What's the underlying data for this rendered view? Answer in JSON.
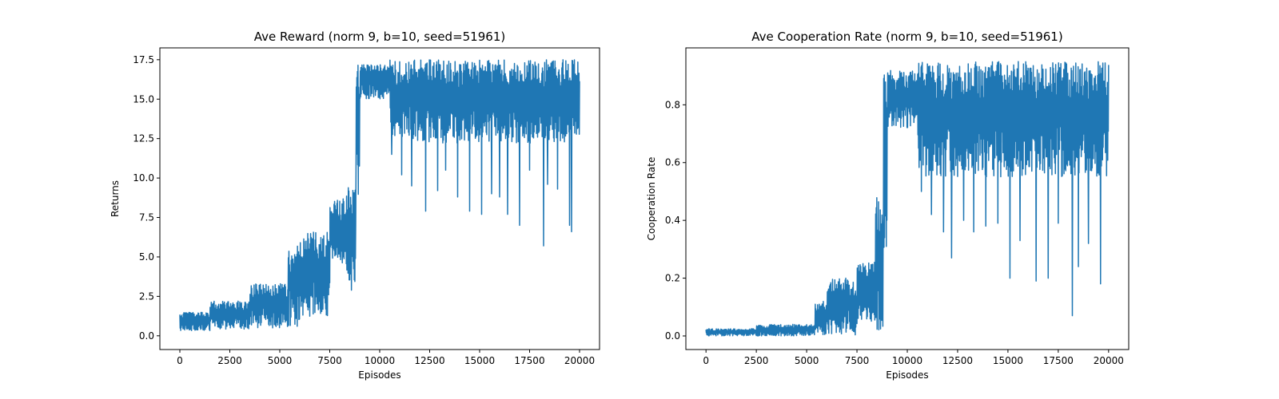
{
  "chart_data": [
    {
      "type": "line",
      "title": "Ave Reward (norm 9, b=10, seed=51961)",
      "xlabel": "Episodes",
      "ylabel": "Returns",
      "xlim": [
        -1000,
        21000
      ],
      "ylim": [
        -0.87,
        18.25
      ],
      "xticks": [
        0,
        2500,
        5000,
        7500,
        10000,
        12500,
        15000,
        17500,
        20000
      ],
      "yticks": [
        0.0,
        2.5,
        5.0,
        7.5,
        10.0,
        12.5,
        15.0,
        17.5
      ],
      "ytick_labels": [
        "0.0",
        "2.5",
        "5.0",
        "7.5",
        "10.0",
        "12.5",
        "15.0",
        "17.5"
      ],
      "color": "#1f77b4",
      "grid": false,
      "series": [
        {
          "x_start": 0,
          "x_end": 20000,
          "segments": [
            {
              "x": [
                0,
                1500
              ],
              "low": 0.3,
              "high": 1.5
            },
            {
              "x": [
                1500,
                3500
              ],
              "low": 0.4,
              "high": 2.2
            },
            {
              "x": [
                3500,
                5400
              ],
              "low": 0.5,
              "high": 3.3
            },
            {
              "x": [
                5400,
                6000
              ],
              "low": 0.6,
              "high": 5.8
            },
            {
              "x": [
                6000,
                7500
              ],
              "low": 1.2,
              "high": 6.6
            },
            {
              "x": [
                7500,
                8300
              ],
              "low": 4.5,
              "high": 8.7
            },
            {
              "x": [
                8300,
                8800
              ],
              "low": 2.6,
              "high": 9.4
            },
            {
              "x": [
                8800,
                9000
              ],
              "low": 8.0,
              "high": 17.2
            },
            {
              "x": [
                9000,
                10500
              ],
              "low": 15.0,
              "high": 17.2
            },
            {
              "x": [
                10500,
                20000
              ],
              "low": 12.2,
              "high": 17.5
            }
          ],
          "dips": [
            [
              10600,
              11.5
            ],
            [
              11100,
              10.2
            ],
            [
              11600,
              9.5
            ],
            [
              12300,
              7.9
            ],
            [
              12900,
              9.2
            ],
            [
              13300,
              10.5
            ],
            [
              13900,
              8.8
            ],
            [
              14500,
              7.9
            ],
            [
              15100,
              7.7
            ],
            [
              15600,
              9.0
            ],
            [
              16000,
              8.8
            ],
            [
              16400,
              7.7
            ],
            [
              17000,
              7.0
            ],
            [
              17500,
              10.5
            ],
            [
              18200,
              5.7
            ],
            [
              18400,
              9.6
            ],
            [
              18900,
              9.3
            ],
            [
              19500,
              7.0
            ],
            [
              19600,
              6.6
            ]
          ]
        }
      ]
    },
    {
      "type": "line",
      "title": "Ave Cooperation Rate (norm 9, b=10, seed=51961)",
      "xlabel": "Episodes",
      "ylabel": "Cooperation Rate",
      "xlim": [
        -1000,
        21000
      ],
      "ylim": [
        -0.047,
        0.997
      ],
      "xticks": [
        0,
        2500,
        5000,
        7500,
        10000,
        12500,
        15000,
        17500,
        20000
      ],
      "yticks": [
        0.0,
        0.2,
        0.4,
        0.6,
        0.8
      ],
      "ytick_labels": [
        "0.0",
        "0.2",
        "0.4",
        "0.6",
        "0.8"
      ],
      "color": "#1f77b4",
      "grid": false,
      "series": [
        {
          "x_start": 0,
          "x_end": 20000,
          "segments": [
            {
              "x": [
                0,
                2500
              ],
              "low": 0.0,
              "high": 0.025
            },
            {
              "x": [
                2500,
                5400
              ],
              "low": 0.0,
              "high": 0.04
            },
            {
              "x": [
                5400,
                6000
              ],
              "low": 0.0,
              "high": 0.12
            },
            {
              "x": [
                6000,
                7500
              ],
              "low": 0.0,
              "high": 0.2
            },
            {
              "x": [
                7500,
                8400
              ],
              "low": 0.05,
              "high": 0.26
            },
            {
              "x": [
                8400,
                8800
              ],
              "low": 0.02,
              "high": 0.48
            },
            {
              "x": [
                8800,
                9000
              ],
              "low": 0.3,
              "high": 0.91
            },
            {
              "x": [
                9000,
                10500
              ],
              "low": 0.72,
              "high": 0.92
            },
            {
              "x": [
                10500,
                20000
              ],
              "low": 0.55,
              "high": 0.95
            }
          ],
          "dips": [
            [
              10700,
              0.5
            ],
            [
              11200,
              0.42
            ],
            [
              11800,
              0.36
            ],
            [
              12200,
              0.27
            ],
            [
              12800,
              0.4
            ],
            [
              13300,
              0.36
            ],
            [
              13900,
              0.38
            ],
            [
              14500,
              0.39
            ],
            [
              15100,
              0.2
            ],
            [
              15600,
              0.33
            ],
            [
              16400,
              0.19
            ],
            [
              17000,
              0.2
            ],
            [
              17500,
              0.39
            ],
            [
              18200,
              0.07
            ],
            [
              18500,
              0.24
            ],
            [
              19000,
              0.32
            ],
            [
              19600,
              0.18
            ]
          ]
        }
      ]
    }
  ]
}
